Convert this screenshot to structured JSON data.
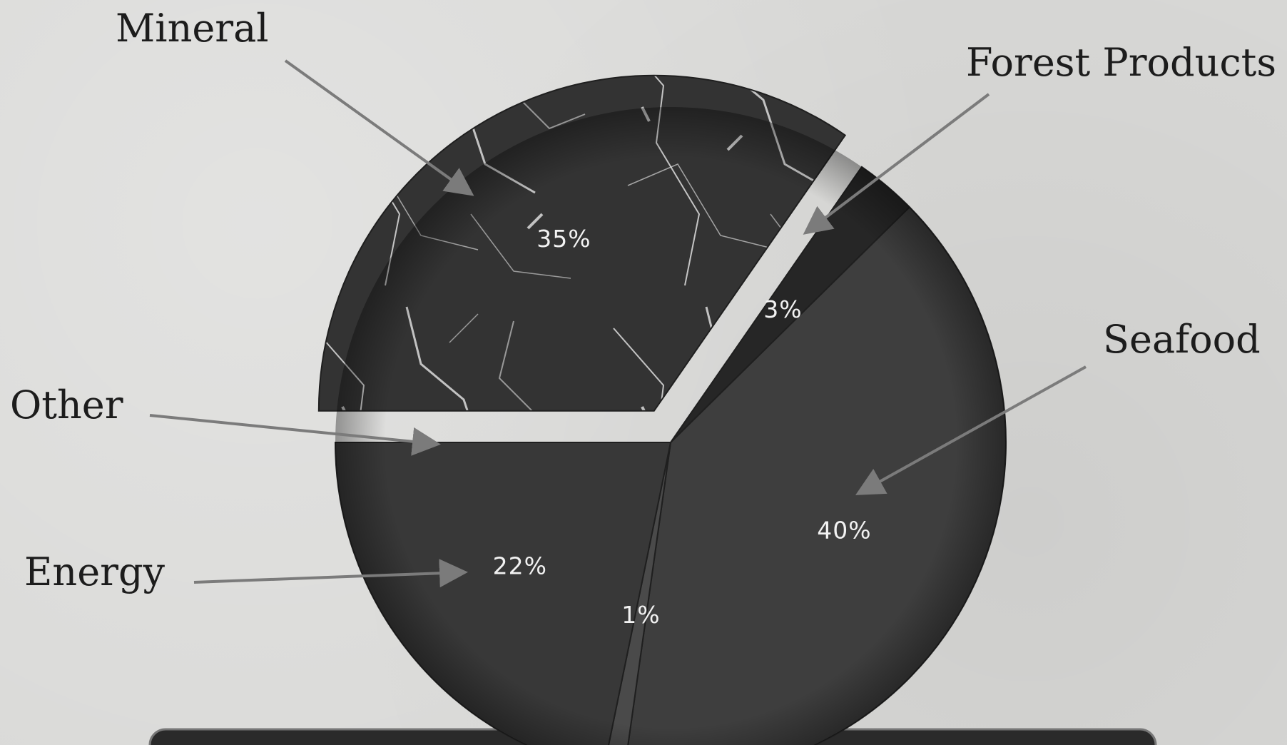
{
  "chart_data": {
    "type": "pie",
    "title": "",
    "slices": [
      {
        "label": "Mineral",
        "value": 35,
        "value_label": "35%",
        "color": "#3a3a3a",
        "exploded": true
      },
      {
        "label": "Forest Products",
        "value": 3,
        "value_label": "3%",
        "color": "#262626",
        "exploded": false
      },
      {
        "label": "Seafood",
        "value": 40,
        "value_label": "40%",
        "color": "#3e3e3e",
        "exploded": false
      },
      {
        "label": "Other",
        "value": 1,
        "value_label": "1%",
        "color": "#4a4a4a",
        "exploded": false
      },
      {
        "label": "Energy",
        "value": 22,
        "value_label": "22%",
        "color": "#383838",
        "exploded": false
      }
    ],
    "legend": "none"
  },
  "colors": {
    "background": "#d9d9d7",
    "base_panel": "#2a2a2a",
    "leader_line": "#7b7b7b"
  }
}
